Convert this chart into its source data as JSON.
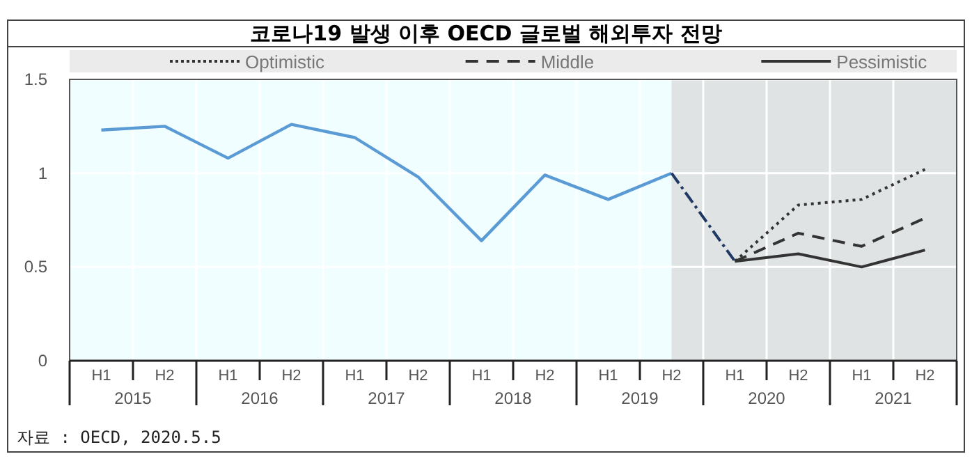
{
  "chart_data": {
    "type": "line",
    "title": "코로나19 발생 이후 OECD 글로벌 해외투자 전망",
    "categories": [
      "H1",
      "H2",
      "H1",
      "H2",
      "H1",
      "H2",
      "H1",
      "H2",
      "H1",
      "H2",
      "H1",
      "H2",
      "H1",
      "H2"
    ],
    "series": [
      {
        "color": "#5b9bd5",
        "line_style": "solid",
        "values": [
          1.23,
          1.25,
          1.08,
          1.26,
          1.19,
          0.98,
          0.64,
          0.99,
          0.86,
          1.0,
          null,
          null,
          null,
          null
        ]
      },
      {
        "color": "#1f3864",
        "line_style": "dashed",
        "values": [
          null,
          null,
          null,
          null,
          null,
          null,
          null,
          null,
          null,
          1.0,
          0.53,
          null,
          null,
          null
        ]
      },
      {
        "name": "Optimistic",
        "color": "#333333",
        "line_style": "dotted",
        "values": [
          null,
          null,
          null,
          null,
          null,
          null,
          null,
          null,
          null,
          null,
          0.53,
          0.83,
          0.86,
          1.02
        ]
      },
      {
        "name": "Middle",
        "color": "#333333",
        "line_style": "dashed",
        "values": [
          null,
          null,
          null,
          null,
          null,
          null,
          null,
          null,
          null,
          null,
          0.53,
          0.68,
          0.61,
          0.76
        ]
      },
      {
        "name": "Pessimistic",
        "color": "#333333",
        "line_style": "solid",
        "values": [
          null,
          null,
          null,
          null,
          null,
          null,
          null,
          null,
          null,
          null,
          0.53,
          0.57,
          0.5,
          0.59
        ]
      }
    ],
    "ylim": [
      0,
      1.5
    ],
    "yticks": [
      0,
      0.5,
      1,
      1.5
    ],
    "grid": true,
    "legend": "top",
    "annotations": [
      "2015",
      "2016",
      "2017",
      "2018",
      "2019",
      "2020",
      "2021",
      "자료 : OECD, 2020.5.5"
    ]
  }
}
